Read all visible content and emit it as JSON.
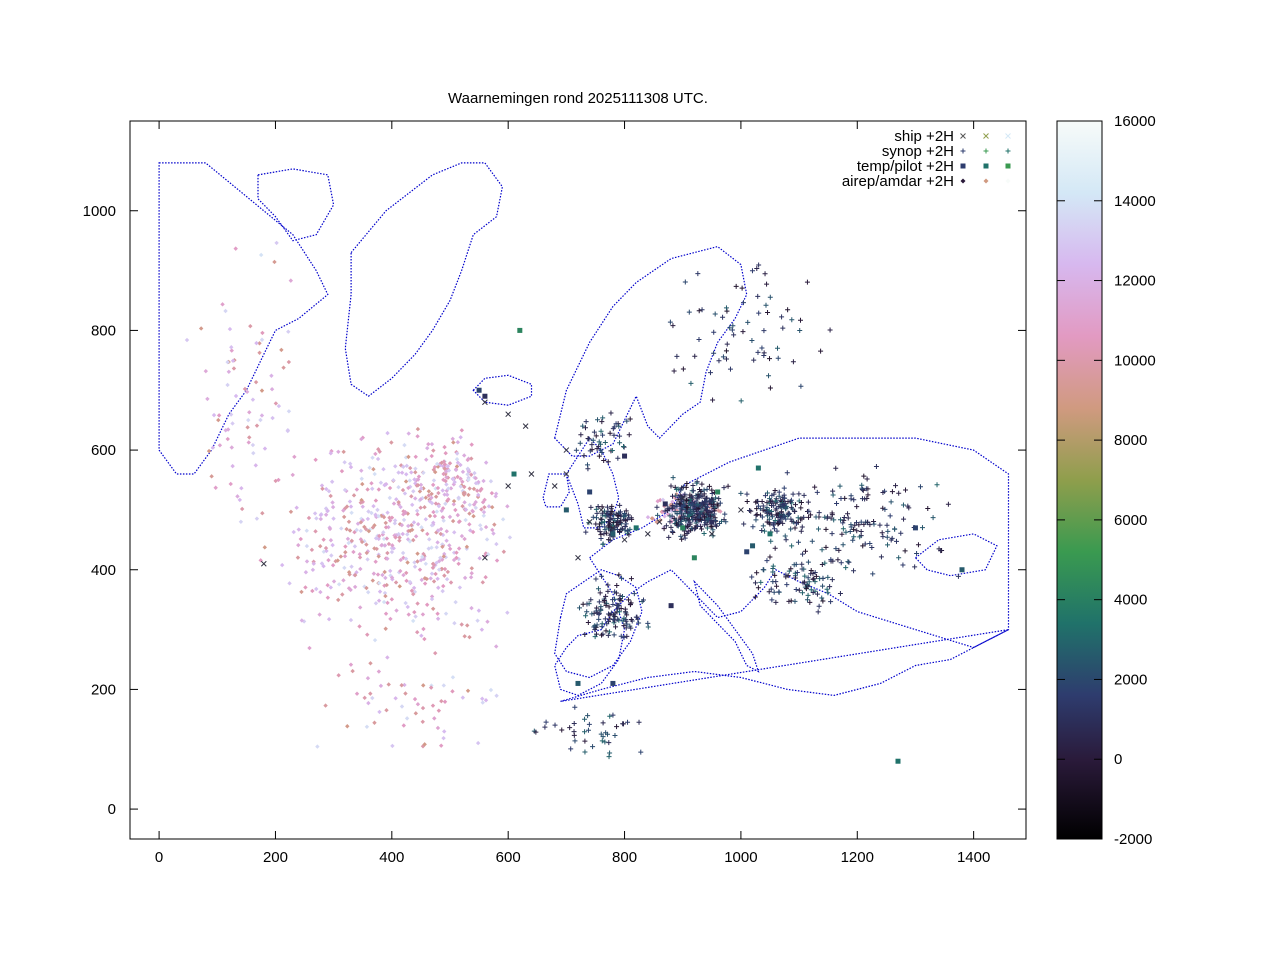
{
  "chart_data": {
    "type": "scatter",
    "title": "Waarnemingen rond 2025111308 UTC.",
    "xlim": [
      -50,
      1490
    ],
    "ylim": [
      -50,
      1150
    ],
    "x_ticks": [
      "0",
      "200",
      "400",
      "600",
      "800",
      "1000",
      "1200",
      "1400"
    ],
    "x_tick_values": [
      0,
      200,
      400,
      600,
      800,
      1000,
      1200,
      1400
    ],
    "y_ticks": [
      "0",
      "200",
      "400",
      "600",
      "800",
      "1000"
    ],
    "y_tick_values": [
      0,
      200,
      400,
      600,
      800,
      1000
    ],
    "colorbar": {
      "min": -2000,
      "max": 16000,
      "ticks": [
        "-2000",
        "0",
        "2000",
        "4000",
        "6000",
        "8000",
        "10000",
        "12000",
        "14000",
        "16000"
      ],
      "tick_values": [
        -2000,
        0,
        2000,
        4000,
        6000,
        8000,
        10000,
        12000,
        14000,
        16000
      ]
    },
    "legend_position": "top-right",
    "series": [
      {
        "name": "ship +2H",
        "marker": "x"
      },
      {
        "name": "synop +2H",
        "marker": "+"
      },
      {
        "name": "temp/pilot +2H",
        "marker": "square"
      },
      {
        "name": "airep/amdar +2H",
        "marker": "diamond"
      }
    ],
    "coastline_color": "#0000cc",
    "ship_points": [
      [
        780,
        470
      ],
      [
        800,
        450
      ],
      [
        840,
        460
      ],
      [
        560,
        680
      ],
      [
        600,
        660
      ],
      [
        630,
        640
      ],
      [
        700,
        560
      ],
      [
        740,
        480
      ],
      [
        760,
        500
      ],
      [
        860,
        480
      ],
      [
        900,
        520
      ],
      [
        950,
        460
      ],
      [
        1000,
        500
      ],
      [
        680,
        540
      ],
      [
        640,
        560
      ],
      [
        180,
        410
      ],
      [
        600,
        540
      ],
      [
        560,
        420
      ],
      [
        720,
        420
      ],
      [
        700,
        600
      ]
    ],
    "synop_clusters": [
      {
        "cx": 920,
        "cy": 500,
        "rx": 70,
        "ry": 60,
        "n": 320
      },
      {
        "cx": 1060,
        "cy": 500,
        "rx": 70,
        "ry": 50,
        "n": 150
      },
      {
        "cx": 780,
        "cy": 480,
        "rx": 50,
        "ry": 50,
        "n": 120
      },
      {
        "cx": 780,
        "cy": 330,
        "rx": 80,
        "ry": 70,
        "n": 120
      },
      {
        "cx": 1200,
        "cy": 480,
        "rx": 200,
        "ry": 120,
        "n": 150
      },
      {
        "cx": 1100,
        "cy": 380,
        "rx": 120,
        "ry": 60,
        "n": 90
      },
      {
        "cx": 740,
        "cy": 130,
        "rx": 100,
        "ry": 60,
        "n": 40
      },
      {
        "cx": 1000,
        "cy": 800,
        "rx": 200,
        "ry": 150,
        "n": 70
      },
      {
        "cx": 760,
        "cy": 620,
        "rx": 60,
        "ry": 60,
        "n": 50
      }
    ],
    "temp_points": [
      [
        560,
        690
      ],
      [
        550,
        700
      ],
      [
        780,
        460
      ],
      [
        820,
        470
      ],
      [
        900,
        470
      ],
      [
        950,
        480
      ],
      [
        1010,
        430
      ],
      [
        1020,
        440
      ],
      [
        1050,
        460
      ],
      [
        920,
        420
      ],
      [
        880,
        340
      ],
      [
        1300,
        470
      ],
      [
        1380,
        400
      ],
      [
        610,
        560
      ],
      [
        620,
        800
      ],
      [
        800,
        590
      ],
      [
        740,
        530
      ],
      [
        700,
        500
      ],
      [
        1030,
        570
      ],
      [
        960,
        530
      ],
      [
        870,
        510
      ],
      [
        780,
        210
      ],
      [
        720,
        210
      ],
      [
        1270,
        80
      ]
    ],
    "airep_clusters": [
      {
        "cx": 400,
        "cy": 450,
        "rx": 260,
        "ry": 220,
        "n": 520
      },
      {
        "cx": 150,
        "cy": 700,
        "rx": 120,
        "ry": 280,
        "n": 80
      },
      {
        "cx": 500,
        "cy": 550,
        "rx": 120,
        "ry": 100,
        "n": 150
      },
      {
        "cx": 900,
        "cy": 500,
        "rx": 80,
        "ry": 40,
        "n": 80
      },
      {
        "cx": 420,
        "cy": 180,
        "rx": 200,
        "ry": 120,
        "n": 60
      }
    ]
  }
}
